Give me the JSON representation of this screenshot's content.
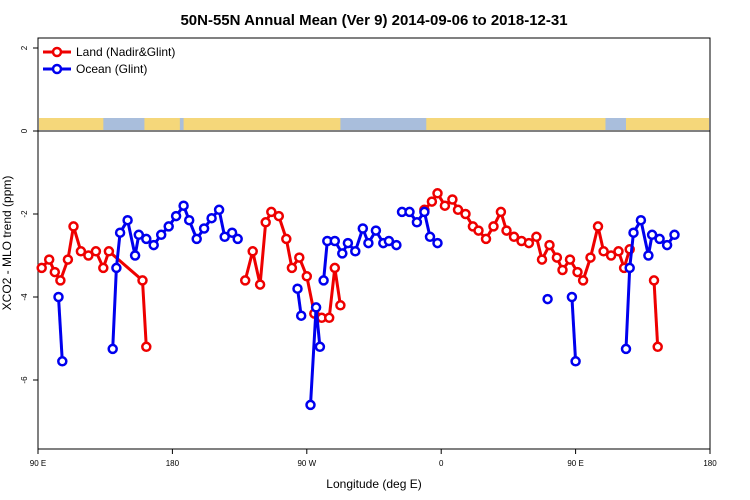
{
  "chart_data": {
    "type": "line",
    "title": "50N-55N Annual Mean (Ver 9)   2014-09-06 to 2018-12-31",
    "xlabel": "Longitude (deg E)",
    "ylabel": "XCO2 - MLO trend (ppm)",
    "xlim": [
      90,
      450
    ],
    "ylim": [
      -7.5,
      2.2
    ],
    "x_ticks": [
      90,
      162,
      234,
      306,
      378,
      450
    ],
    "x_tick_labels": [
      "90 E",
      "180",
      "90 W",
      "0",
      "90 E",
      "180"
    ],
    "y_ticks": [
      -6,
      -4,
      -2,
      0,
      2
    ],
    "y_tick_labels": [
      "-6",
      "-4",
      "-2",
      "0",
      "2"
    ],
    "land_strip": {
      "land_color": "#f5d77a",
      "ocean_color": "#a9bedc"
    },
    "legend_position": "top-left",
    "series": [
      {
        "name": "Land (Nadir&Glint)",
        "color": "#ee0000",
        "points": [
          [
            92,
            -3.3
          ],
          [
            96,
            -3.1
          ],
          [
            99,
            -3.4
          ],
          [
            102,
            -3.6
          ],
          [
            106,
            -3.1
          ],
          [
            109,
            -2.3
          ],
          [
            113,
            -2.9
          ],
          [
            117,
            -3
          ],
          [
            121,
            -2.9
          ],
          [
            125,
            -3.3
          ],
          [
            128,
            -2.9
          ],
          [
            146,
            -3.6
          ],
          [
            148,
            -5.2
          ],
          [
            null,
            null
          ],
          [
            201,
            -3.6
          ],
          [
            205,
            -2.9
          ],
          [
            209,
            -3.7
          ],
          [
            212,
            -2.2
          ],
          [
            215,
            -1.95
          ],
          [
            219,
            -2.05
          ],
          [
            223,
            -2.6
          ],
          [
            226,
            -3.3
          ],
          [
            230,
            -3.05
          ],
          [
            234,
            -3.5
          ],
          [
            238,
            -4.4
          ],
          [
            242,
            -4.5
          ],
          [
            246,
            -4.5
          ],
          [
            249,
            -3.3
          ],
          [
            252,
            -4.2
          ],
          [
            null,
            null
          ],
          [
            297,
            -1.9
          ],
          [
            301,
            -1.7
          ],
          [
            304,
            -1.5
          ],
          [
            308,
            -1.8
          ],
          [
            312,
            -1.65
          ],
          [
            315,
            -1.9
          ],
          [
            319,
            -2
          ],
          [
            323,
            -2.3
          ],
          [
            326,
            -2.4
          ],
          [
            330,
            -2.6
          ],
          [
            334,
            -2.3
          ],
          [
            338,
            -1.95
          ],
          [
            341,
            -2.4
          ],
          [
            345,
            -2.55
          ],
          [
            349,
            -2.65
          ],
          [
            353,
            -2.7
          ],
          [
            357,
            -2.55
          ],
          [
            360,
            -3.1
          ],
          [
            364,
            -2.75
          ],
          [
            368,
            -3.05
          ],
          [
            371,
            -3.35
          ],
          [
            375,
            -3.1
          ],
          [
            379,
            -3.4
          ],
          [
            382,
            -3.6
          ],
          [
            386,
            -3.05
          ],
          [
            390,
            -2.3
          ],
          [
            393,
            -2.9
          ],
          [
            397,
            -3
          ],
          [
            401,
            -2.9
          ],
          [
            404,
            -3.3
          ],
          [
            407,
            -2.85
          ],
          [
            null,
            null
          ],
          [
            420,
            -3.6
          ],
          [
            422,
            -5.2
          ]
        ]
      },
      {
        "name": "Ocean (Glint)",
        "color": "#0000ee",
        "points": [
          [
            101,
            -4
          ],
          [
            103,
            -5.55
          ],
          [
            null,
            null
          ],
          [
            130,
            -5.25
          ],
          [
            132,
            -3.3
          ],
          [
            134,
            -2.45
          ],
          [
            138,
            -2.15
          ],
          [
            142,
            -3
          ],
          [
            144,
            -2.5
          ],
          [
            148,
            -2.6
          ],
          [
            152,
            -2.75
          ],
          [
            156,
            -2.5
          ],
          [
            160,
            -2.3
          ],
          [
            164,
            -2.05
          ],
          [
            168,
            -1.8
          ],
          [
            171,
            -2.15
          ],
          [
            175,
            -2.6
          ],
          [
            179,
            -2.35
          ],
          [
            183,
            -2.1
          ],
          [
            187,
            -1.9
          ],
          [
            190,
            -2.55
          ],
          [
            194,
            -2.45
          ],
          [
            197,
            -2.6
          ],
          [
            null,
            null
          ],
          [
            229,
            -3.8
          ],
          [
            231,
            -4.45
          ],
          [
            null,
            null
          ],
          [
            243,
            -3.6
          ],
          [
            245,
            -2.65
          ],
          [
            249,
            -2.65
          ],
          [
            253,
            -2.95
          ],
          [
            256,
            -2.7
          ],
          [
            260,
            -2.9
          ],
          [
            264,
            -2.35
          ],
          [
            267,
            -2.7
          ],
          [
            271,
            -2.4
          ],
          [
            275,
            -2.7
          ],
          [
            278,
            -2.65
          ],
          [
            282,
            -2.75
          ],
          [
            null,
            null
          ],
          [
            285,
            -1.95
          ],
          [
            289,
            -1.95
          ],
          [
            293,
            -2.2
          ],
          [
            297,
            -1.95
          ],
          [
            300,
            -2.55
          ],
          [
            304,
            -2.7
          ],
          [
            null,
            null
          ],
          [
            363,
            -4.05
          ],
          [
            null,
            null
          ],
          [
            376,
            -4
          ],
          [
            378,
            -5.55
          ],
          [
            null,
            null
          ],
          [
            405,
            -5.25
          ],
          [
            407,
            -3.3
          ],
          [
            409,
            -2.45
          ],
          [
            413,
            -2.15
          ],
          [
            417,
            -3
          ],
          [
            419,
            -2.5
          ],
          [
            423,
            -2.6
          ],
          [
            427,
            -2.75
          ],
          [
            431,
            -2.5
          ],
          [
            null,
            null
          ],
          [
            236,
            -6.6
          ],
          [
            239,
            -4.25
          ],
          [
            241,
            -5.2
          ]
        ]
      }
    ]
  }
}
